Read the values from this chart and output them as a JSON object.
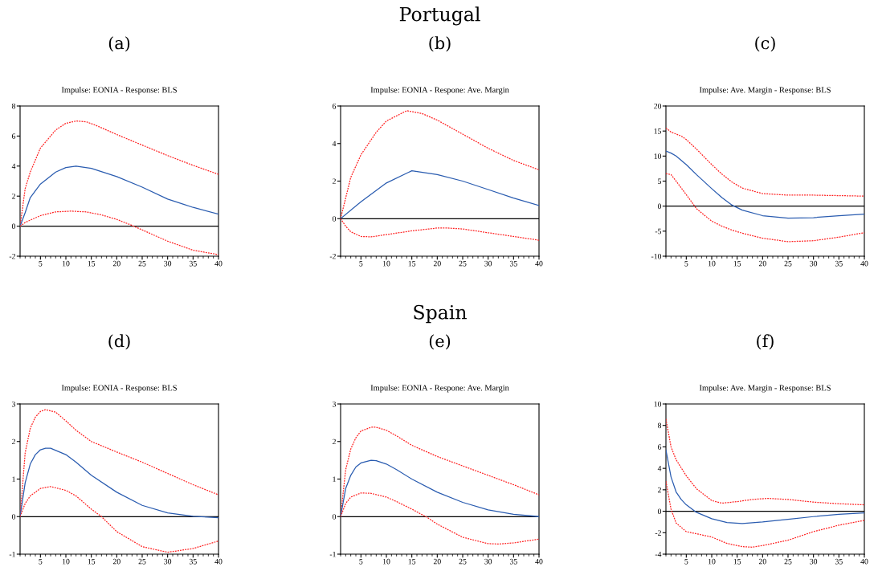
{
  "chart_data": [
    {
      "type": "line",
      "title": "Impulse: EONIA - Response: BLS",
      "annotations": [
        "(a)"
      ],
      "xlim": [
        1,
        40
      ],
      "xticks": [
        5,
        10,
        15,
        20,
        25,
        30,
        35,
        40
      ],
      "ylim": [
        -2,
        8
      ],
      "yticks": [
        -2,
        0,
        2,
        4,
        6,
        8
      ],
      "grid": false,
      "ref_lines": [
        {
          "axis": "y",
          "value": 0,
          "color": "#000000"
        }
      ],
      "series": [
        {
          "color": "#ff2020",
          "line_style": "dotted",
          "x": [
            1,
            2,
            3,
            5,
            8,
            10,
            12,
            14,
            16,
            20,
            25,
            30,
            35,
            40
          ],
          "values": [
            0,
            2.5,
            3.6,
            5.2,
            6.4,
            6.85,
            7.0,
            6.95,
            6.7,
            6.1,
            5.4,
            4.7,
            4.05,
            3.45
          ]
        },
        {
          "color": "#2a5cb0",
          "line_style": "solid",
          "x": [
            1,
            2,
            3,
            5,
            8,
            10,
            12,
            15,
            20,
            25,
            30,
            35,
            40
          ],
          "values": [
            0,
            0.9,
            1.9,
            2.8,
            3.6,
            3.9,
            4.0,
            3.85,
            3.3,
            2.6,
            1.8,
            1.25,
            0.8
          ]
        },
        {
          "color": "#ff2020",
          "line_style": "dotted",
          "x": [
            1,
            2,
            5,
            8,
            11,
            14,
            17,
            20,
            23,
            25,
            30,
            35,
            40
          ],
          "values": [
            0,
            0.25,
            0.7,
            0.95,
            1.0,
            0.95,
            0.75,
            0.45,
            0.05,
            -0.25,
            -1.0,
            -1.6,
            -1.9
          ]
        }
      ]
    },
    {
      "type": "line",
      "title": "Impulse: EONIA - Respone: Ave. Margin",
      "annotations": [
        "Portugal",
        "(b)"
      ],
      "xlim": [
        1,
        40
      ],
      "xticks": [
        5,
        10,
        15,
        20,
        25,
        30,
        35,
        40
      ],
      "ylim": [
        -2,
        6
      ],
      "yticks": [
        -2,
        0,
        2,
        4,
        6
      ],
      "grid": false,
      "ref_lines": [
        {
          "axis": "y",
          "value": 0,
          "color": "#000000"
        }
      ],
      "series": [
        {
          "color": "#ff2020",
          "line_style": "dotted",
          "x": [
            1,
            3,
            5,
            8,
            10,
            14,
            17,
            20,
            25,
            30,
            35,
            40
          ],
          "values": [
            0,
            2.2,
            3.4,
            4.6,
            5.2,
            5.75,
            5.6,
            5.25,
            4.5,
            3.75,
            3.1,
            2.6
          ]
        },
        {
          "color": "#2a5cb0",
          "line_style": "solid",
          "x": [
            1,
            5,
            10,
            15,
            20,
            25,
            30,
            35,
            40
          ],
          "values": [
            0,
            0.9,
            1.9,
            2.55,
            2.35,
            2.0,
            1.55,
            1.1,
            0.7
          ]
        },
        {
          "color": "#ff2020",
          "line_style": "dotted",
          "x": [
            1,
            2,
            3,
            5,
            7,
            10,
            15,
            20,
            22,
            25,
            30,
            35,
            40
          ],
          "values": [
            0,
            -0.4,
            -0.7,
            -0.95,
            -0.97,
            -0.85,
            -0.65,
            -0.5,
            -0.5,
            -0.55,
            -0.75,
            -0.95,
            -1.15
          ]
        }
      ]
    },
    {
      "type": "line",
      "title": "Impulse: Ave. Margin - Response: BLS",
      "annotations": [
        "(c)"
      ],
      "xlim": [
        1,
        40
      ],
      "xticks": [
        5,
        10,
        15,
        20,
        25,
        30,
        35,
        40
      ],
      "ylim": [
        -10,
        20
      ],
      "yticks": [
        -10,
        -5,
        0,
        5,
        10,
        15,
        20
      ],
      "grid": false,
      "ref_lines": [
        {
          "axis": "y",
          "value": 0,
          "color": "#000000"
        }
      ],
      "series": [
        {
          "color": "#ff2020",
          "line_style": "dotted",
          "x": [
            1,
            2,
            4,
            5,
            7,
            10,
            12,
            14,
            16,
            20,
            25,
            30,
            35,
            40
          ],
          "values": [
            15.6,
            14.8,
            14.0,
            13.3,
            11.4,
            8.3,
            6.4,
            4.8,
            3.6,
            2.5,
            2.2,
            2.2,
            2.1,
            2.0
          ]
        },
        {
          "color": "#2a5cb0",
          "line_style": "solid",
          "x": [
            1,
            2,
            3,
            5,
            7,
            10,
            12,
            14,
            16,
            20,
            25,
            30,
            35,
            40
          ],
          "values": [
            11.0,
            10.6,
            10.0,
            8.3,
            6.3,
            3.5,
            1.7,
            0.2,
            -0.8,
            -1.9,
            -2.4,
            -2.3,
            -1.9,
            -1.6
          ]
        },
        {
          "color": "#ff2020",
          "line_style": "dotted",
          "x": [
            1,
            2,
            3,
            5,
            7,
            10,
            12,
            14,
            16,
            20,
            25,
            30,
            35,
            40
          ],
          "values": [
            6.5,
            6.3,
            5.0,
            2.3,
            -0.5,
            -3.0,
            -4.0,
            -4.8,
            -5.4,
            -6.4,
            -7.1,
            -6.9,
            -6.2,
            -5.3
          ]
        }
      ]
    },
    {
      "type": "line",
      "title": "Impulse: EONIA - Response: BLS",
      "annotations": [
        "(d)"
      ],
      "xlim": [
        1,
        40
      ],
      "xticks": [
        5,
        10,
        15,
        20,
        25,
        30,
        35,
        40
      ],
      "ylim": [
        -1,
        3
      ],
      "yticks": [
        -1,
        0,
        1,
        2,
        3
      ],
      "grid": false,
      "ref_lines": [
        {
          "axis": "y",
          "value": 0,
          "color": "#000000"
        }
      ],
      "series": [
        {
          "color": "#ff2020",
          "line_style": "dotted",
          "x": [
            1,
            2,
            3,
            4,
            5,
            6,
            8,
            10,
            12,
            15,
            20,
            25,
            30,
            35,
            40
          ],
          "values": [
            0,
            1.7,
            2.35,
            2.65,
            2.8,
            2.85,
            2.78,
            2.55,
            2.3,
            2.0,
            1.72,
            1.45,
            1.15,
            0.85,
            0.58
          ]
        },
        {
          "color": "#2a5cb0",
          "line_style": "solid",
          "x": [
            1,
            2,
            3,
            4,
            5,
            6,
            7,
            10,
            12,
            15,
            20,
            25,
            30,
            35,
            40
          ],
          "values": [
            0,
            0.9,
            1.4,
            1.65,
            1.78,
            1.82,
            1.82,
            1.65,
            1.45,
            1.1,
            0.65,
            0.3,
            0.1,
            0.01,
            -0.03
          ]
        },
        {
          "color": "#ff2020",
          "line_style": "dotted",
          "x": [
            1,
            2,
            3,
            5,
            7,
            10,
            12,
            15,
            17,
            20,
            25,
            30,
            35,
            40
          ],
          "values": [
            0,
            0.35,
            0.55,
            0.75,
            0.8,
            0.7,
            0.55,
            0.2,
            0.0,
            -0.4,
            -0.8,
            -0.95,
            -0.85,
            -0.65
          ]
        }
      ]
    },
    {
      "type": "line",
      "title": "Impulse: EONIA - Respone: Ave. Margin",
      "annotations": [
        "Spain",
        "(e)"
      ],
      "xlim": [
        1,
        40
      ],
      "xticks": [
        5,
        10,
        15,
        20,
        25,
        30,
        35,
        40
      ],
      "ylim": [
        -1,
        3
      ],
      "yticks": [
        -1,
        0,
        1,
        2,
        3
      ],
      "grid": false,
      "ref_lines": [
        {
          "axis": "y",
          "value": 0,
          "color": "#000000"
        }
      ],
      "series": [
        {
          "color": "#ff2020",
          "line_style": "dotted",
          "x": [
            1,
            2,
            3,
            4,
            5,
            7,
            8,
            10,
            12,
            15,
            20,
            25,
            30,
            35,
            40
          ],
          "values": [
            0,
            1.25,
            1.8,
            2.1,
            2.28,
            2.38,
            2.38,
            2.3,
            2.15,
            1.9,
            1.6,
            1.35,
            1.1,
            0.85,
            0.58
          ]
        },
        {
          "color": "#2a5cb0",
          "line_style": "solid",
          "x": [
            1,
            2,
            3,
            4,
            5,
            7,
            8,
            10,
            12,
            15,
            20,
            25,
            30,
            35,
            40
          ],
          "values": [
            0,
            0.75,
            1.1,
            1.32,
            1.43,
            1.5,
            1.49,
            1.4,
            1.25,
            1.0,
            0.65,
            0.38,
            0.18,
            0.06,
            0.0
          ]
        },
        {
          "color": "#ff2020",
          "line_style": "dotted",
          "x": [
            1,
            2,
            3,
            5,
            7,
            10,
            12,
            15,
            18,
            20,
            25,
            30,
            32,
            35,
            40
          ],
          "values": [
            0,
            0.35,
            0.52,
            0.63,
            0.62,
            0.52,
            0.4,
            0.2,
            -0.02,
            -0.2,
            -0.55,
            -0.72,
            -0.73,
            -0.7,
            -0.6
          ]
        }
      ]
    },
    {
      "type": "line",
      "title": "Impulse: Ave. Margin - Response: BLS",
      "annotations": [
        "(f)"
      ],
      "xlim": [
        1,
        40
      ],
      "xticks": [
        5,
        10,
        15,
        20,
        25,
        30,
        35,
        40
      ],
      "ylim": [
        -4,
        10
      ],
      "yticks": [
        -4,
        -2,
        0,
        2,
        4,
        6,
        8,
        10
      ],
      "grid": false,
      "ref_lines": [
        {
          "axis": "y",
          "value": 0,
          "color": "#000000"
        }
      ],
      "series": [
        {
          "color": "#ff2020",
          "line_style": "dotted",
          "x": [
            1,
            2,
            3,
            5,
            7,
            10,
            12,
            15,
            18,
            21,
            25,
            30,
            35,
            40
          ],
          "values": [
            8.6,
            6.0,
            4.8,
            3.3,
            2.1,
            1.0,
            0.75,
            0.9,
            1.1,
            1.2,
            1.1,
            0.85,
            0.7,
            0.6
          ]
        },
        {
          "color": "#2a5cb0",
          "line_style": "solid",
          "x": [
            1,
            2,
            3,
            4,
            5,
            7,
            10,
            13,
            16,
            20,
            25,
            30,
            35,
            40
          ],
          "values": [
            5.7,
            3.2,
            1.8,
            1.1,
            0.6,
            -0.1,
            -0.7,
            -1.05,
            -1.15,
            -1.0,
            -0.75,
            -0.5,
            -0.28,
            -0.15
          ]
        },
        {
          "color": "#ff2020",
          "line_style": "dotted",
          "x": [
            1,
            2,
            3,
            5,
            7,
            10,
            13,
            16,
            18,
            20,
            25,
            30,
            35,
            40
          ],
          "values": [
            2.8,
            0.2,
            -1.1,
            -1.9,
            -2.1,
            -2.4,
            -3.0,
            -3.3,
            -3.35,
            -3.2,
            -2.7,
            -1.9,
            -1.3,
            -0.85
          ]
        }
      ]
    }
  ]
}
